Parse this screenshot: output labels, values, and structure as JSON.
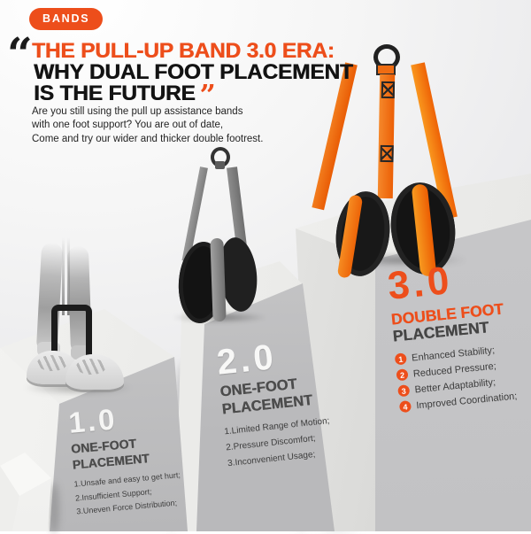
{
  "badge": {
    "label": "BANDS"
  },
  "headline": {
    "open_quote": "“",
    "line1": "THE PULL-UP BAND 3.0 ERA:",
    "line2": "WHY DUAL FOOT PLACEMENT",
    "line3": "IS THE FUTURE",
    "close_quote": "”"
  },
  "intro": {
    "line1": "Are you still using the pull up assistance bands",
    "line2": "with one foot support? You are out of date,",
    "line3": "Come and try our wider and thicker double footrest."
  },
  "podiums": [
    {
      "version": "1.0",
      "title_line1": "ONE-FOOT",
      "title_line2": "PLACEMENT",
      "items": [
        "1.Unsafe and easy to get hurt;",
        "2.Insufficient Support;",
        "3.Uneven Force Distribution;"
      ]
    },
    {
      "version": "2.0",
      "title_line1": "ONE-FOOT",
      "title_line2": "PLACEMENT",
      "items": [
        "1.Limited Range of Motion;",
        "2.Pressure Discomfort;",
        "3.Inconvenient Usage;"
      ]
    },
    {
      "version": "3.0",
      "title_line1": "DOUBLE FOOT",
      "title_line2": "PLACEMENT",
      "items": [
        {
          "num": "1",
          "text": "Enhanced Stability;"
        },
        {
          "num": "2",
          "text": "Reduced Pressure;"
        },
        {
          "num": "3",
          "text": "Better Adaptability;"
        },
        {
          "num": "4",
          "text": "Improved Coordination;"
        }
      ]
    }
  ],
  "colors": {
    "accent_orange": "#ED4E1B",
    "band_orange": "#F5821E",
    "headline_dark": "#131313",
    "podium_front_gray": "#C6C6C8",
    "background_gray": "#EAEAEC"
  }
}
